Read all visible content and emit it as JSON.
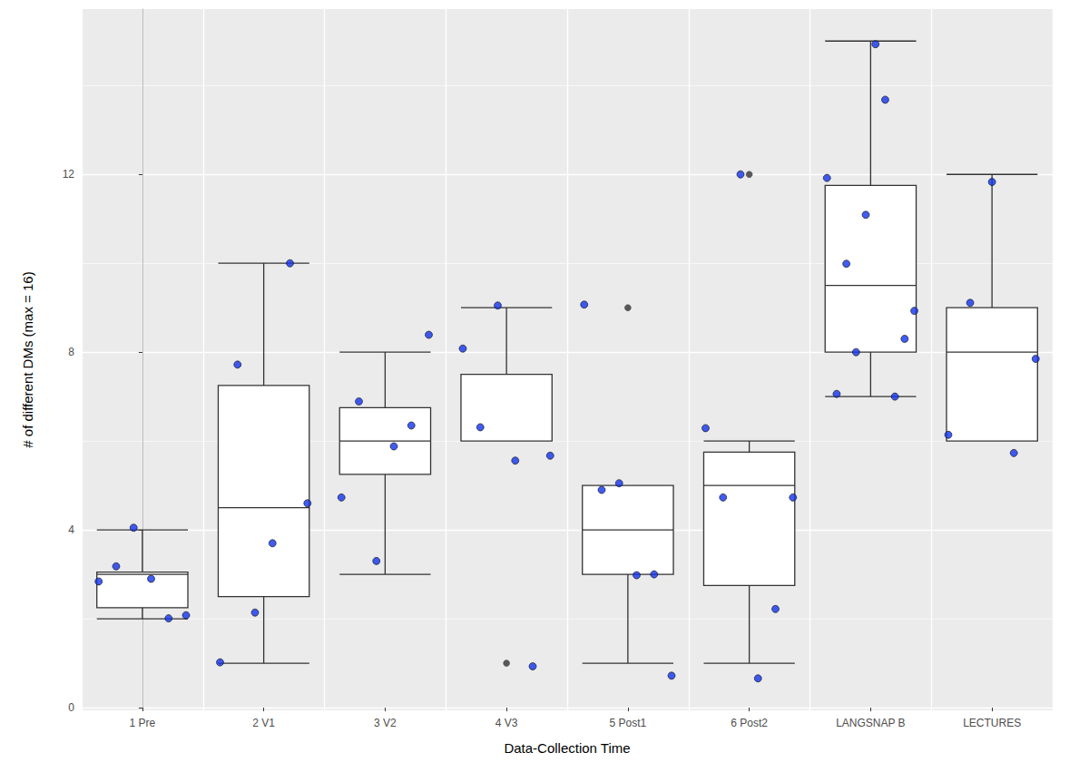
{
  "chart_data": {
    "type": "boxplot",
    "x_label": "Data-Collection Time",
    "y_label": "# of different DMs (max = 16)",
    "categories": [
      "1 Pre",
      "2 V1",
      "3 V2",
      "4 V3",
      "5 Post1",
      "6 Post2",
      "LANGSNAP B",
      "LECTURES"
    ],
    "boxes": [
      {
        "min": 2.0,
        "q1": 2.25,
        "median": 3.0,
        "q3": 3.05,
        "max": 4.0
      },
      {
        "min": 1.0,
        "q1": 2.5,
        "median": 4.5,
        "q3": 7.25,
        "max": 10.0
      },
      {
        "min": 3.0,
        "q1": 5.25,
        "median": 6.0,
        "q3": 6.75,
        "max": 8.0
      },
      {
        "min": 6.0,
        "q1": 6.0,
        "median": 6.0,
        "q3": 7.5,
        "max": 9.0
      },
      {
        "min": 1.0,
        "q1": 3.0,
        "median": 4.0,
        "q3": 5.0,
        "max": 5.0
      },
      {
        "min": 1.0,
        "q1": 2.75,
        "median": 5.0,
        "q3": 5.75,
        "max": 6.0
      },
      {
        "min": 7.0,
        "q1": 8.0,
        "median": 9.5,
        "q3": 11.75,
        "max": 15.0
      },
      {
        "min": 6.0,
        "q1": 6.0,
        "median": 8.0,
        "q3": 9.0,
        "max": 12.0
      }
    ],
    "outliers": [
      [],
      [],
      [],
      [
        1.0
      ],
      [
        9.0
      ],
      [
        12.0
      ],
      [],
      []
    ],
    "points": [
      [
        2.84,
        3.18,
        4.05,
        2.9,
        2.01,
        2.08
      ],
      [
        1.02,
        7.72,
        2.14,
        3.7,
        10.0,
        4.6
      ],
      [
        4.73,
        6.89,
        3.3,
        5.88,
        6.35,
        8.39
      ],
      [
        8.08,
        6.31,
        9.05,
        5.56,
        0.93,
        5.67
      ],
      [
        9.07,
        4.9,
        5.05,
        2.98,
        3.0,
        0.72
      ],
      [
        6.29,
        4.73,
        12.0,
        0.66,
        2.22,
        4.73
      ],
      [
        11.92,
        7.06,
        9.99,
        8.0,
        11.09,
        14.93,
        13.68,
        7.0,
        8.3,
        8.93
      ],
      [
        6.14,
        9.11,
        11.83,
        5.73,
        7.85
      ]
    ],
    "color": "#1133ee",
    "ylim": [
      -0.06,
      15.72
    ],
    "yticks": [
      0,
      4,
      8,
      12
    ],
    "grid": true
  }
}
